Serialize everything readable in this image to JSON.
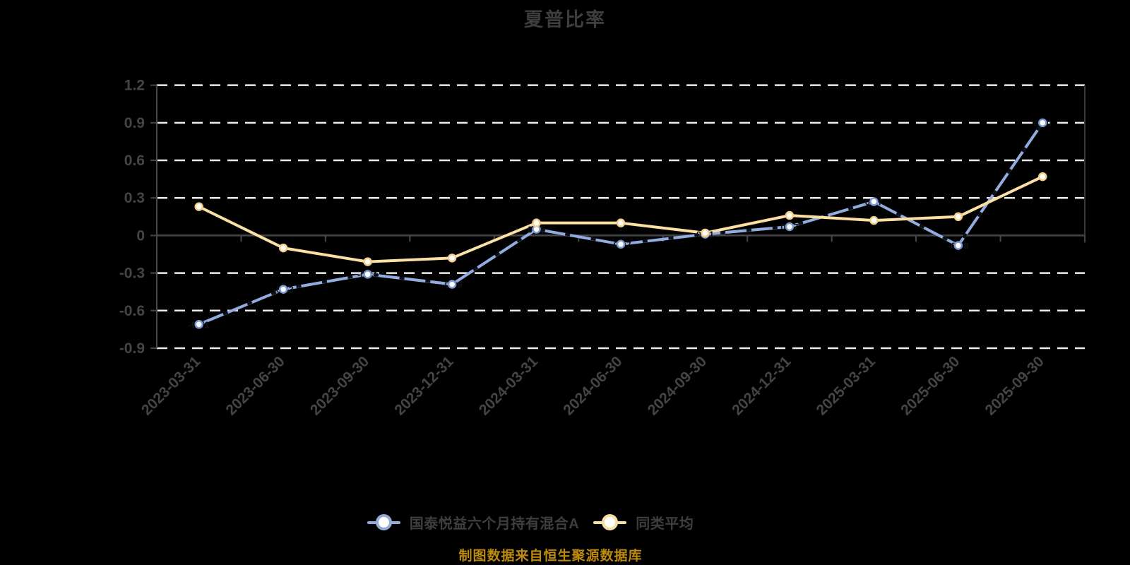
{
  "title": "夏普比率",
  "source_note": "制图数据来自恒生聚源数据库",
  "legend": [
    {
      "label": "国泰悦益六个月持有混合A",
      "color": "#92abd9"
    },
    {
      "label": "同类平均",
      "color": "#f8dda4"
    }
  ],
  "colors": {
    "background": "#000000",
    "title": "#3d3d3f",
    "legend_text": "#3e3e40",
    "source": "#be8a0d"
  },
  "chart_data": {
    "type": "line",
    "title": "夏普比率",
    "categories": [
      "2023-03-31",
      "2023-06-30",
      "2023-09-30",
      "2023-12-31",
      "2024-03-31",
      "2024-06-30",
      "2024-09-30",
      "2024-12-31",
      "2025-03-31",
      "2025-06-30",
      "2025-09-30"
    ],
    "series": [
      {
        "name": "国泰悦益六个月持有混合A",
        "color": "#93acdf",
        "marker_stroke": "#7d9ad0",
        "values": [
          -0.71,
          -0.43,
          -0.31,
          -0.39,
          0.05,
          -0.07,
          0.01,
          0.07,
          0.27,
          -0.08,
          0.9
        ],
        "point_labels": true,
        "dark_dashed_overlay": true
      },
      {
        "name": "同类平均",
        "color": "#fbdfa4",
        "marker_stroke": "#f3cf8a",
        "values": [
          0.23,
          -0.1,
          -0.21,
          -0.18,
          0.1,
          0.1,
          0.02,
          0.16,
          0.12,
          0.15,
          0.47
        ],
        "point_labels": false,
        "dark_dashed_overlay": false
      }
    ],
    "yticks": [
      {
        "value": 1.2,
        "label": "1.2"
      },
      {
        "value": 0.9,
        "label": "0.9"
      },
      {
        "value": 0.6,
        "label": "0.6"
      },
      {
        "value": 0.3,
        "label": "0.3"
      },
      {
        "value": 0,
        "label": "0"
      },
      {
        "value": -0.3,
        "label": "-0.3"
      },
      {
        "value": -0.6,
        "label": "-0.6"
      },
      {
        "value": -0.9,
        "label": "-0.9"
      }
    ],
    "ylim": [
      -0.9,
      1.2
    ],
    "grid": "dashed-horizontal",
    "legend_position": "bottom",
    "style": {
      "grid_color": "#ececec",
      "axis_color": "#47474a",
      "right_border_color": "#3a3a3d",
      "tick_label_color": "#454547",
      "point_label_color": "#111318",
      "overlay_color": "#0c0f15"
    }
  }
}
